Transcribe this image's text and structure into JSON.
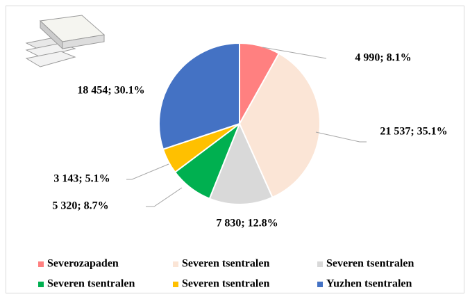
{
  "chart_data": {
    "type": "pie",
    "categories": [
      "Severozapaden",
      "Severen tsentralen",
      "Severen tsentralen",
      "Severen tsentralen",
      "Severen tsentralen",
      "Yuzhen tsentralen"
    ],
    "values": [
      4990,
      21537,
      7830,
      5320,
      3143,
      18454
    ],
    "value_labels": [
      "4 990; 8.1%",
      "21 537; 35.1%",
      "7 830; 12.8%",
      "5 320; 8.7%",
      "3 143; 5.1%",
      "18 454; 30.1%"
    ],
    "colors": [
      "#ff8080",
      "#fbe5d6",
      "#d9d9d9",
      "#00b050",
      "#ffc000",
      "#4472c4"
    ],
    "legend": "bottom"
  }
}
